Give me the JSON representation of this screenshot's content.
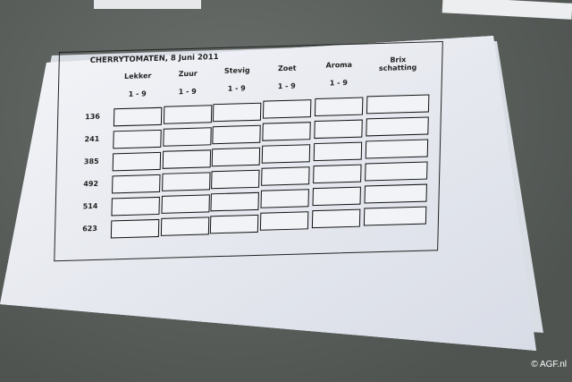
{
  "form": {
    "title": "CHERRYTOMATEN,  8 Juni 2011",
    "columns": [
      {
        "label": "Lekker",
        "scale": "1 - 9"
      },
      {
        "label": "Zuur",
        "scale": "1 - 9"
      },
      {
        "label": "Stevig",
        "scale": "1 - 9"
      },
      {
        "label": "Zoet",
        "scale": "1 - 9"
      },
      {
        "label": "Aroma",
        "scale": "1 - 9"
      },
      {
        "label": "Brix\nschatting",
        "scale": ""
      }
    ],
    "rows": [
      "136",
      "241",
      "385",
      "492",
      "514",
      "623"
    ]
  },
  "watermark": "© AGF.nl"
}
